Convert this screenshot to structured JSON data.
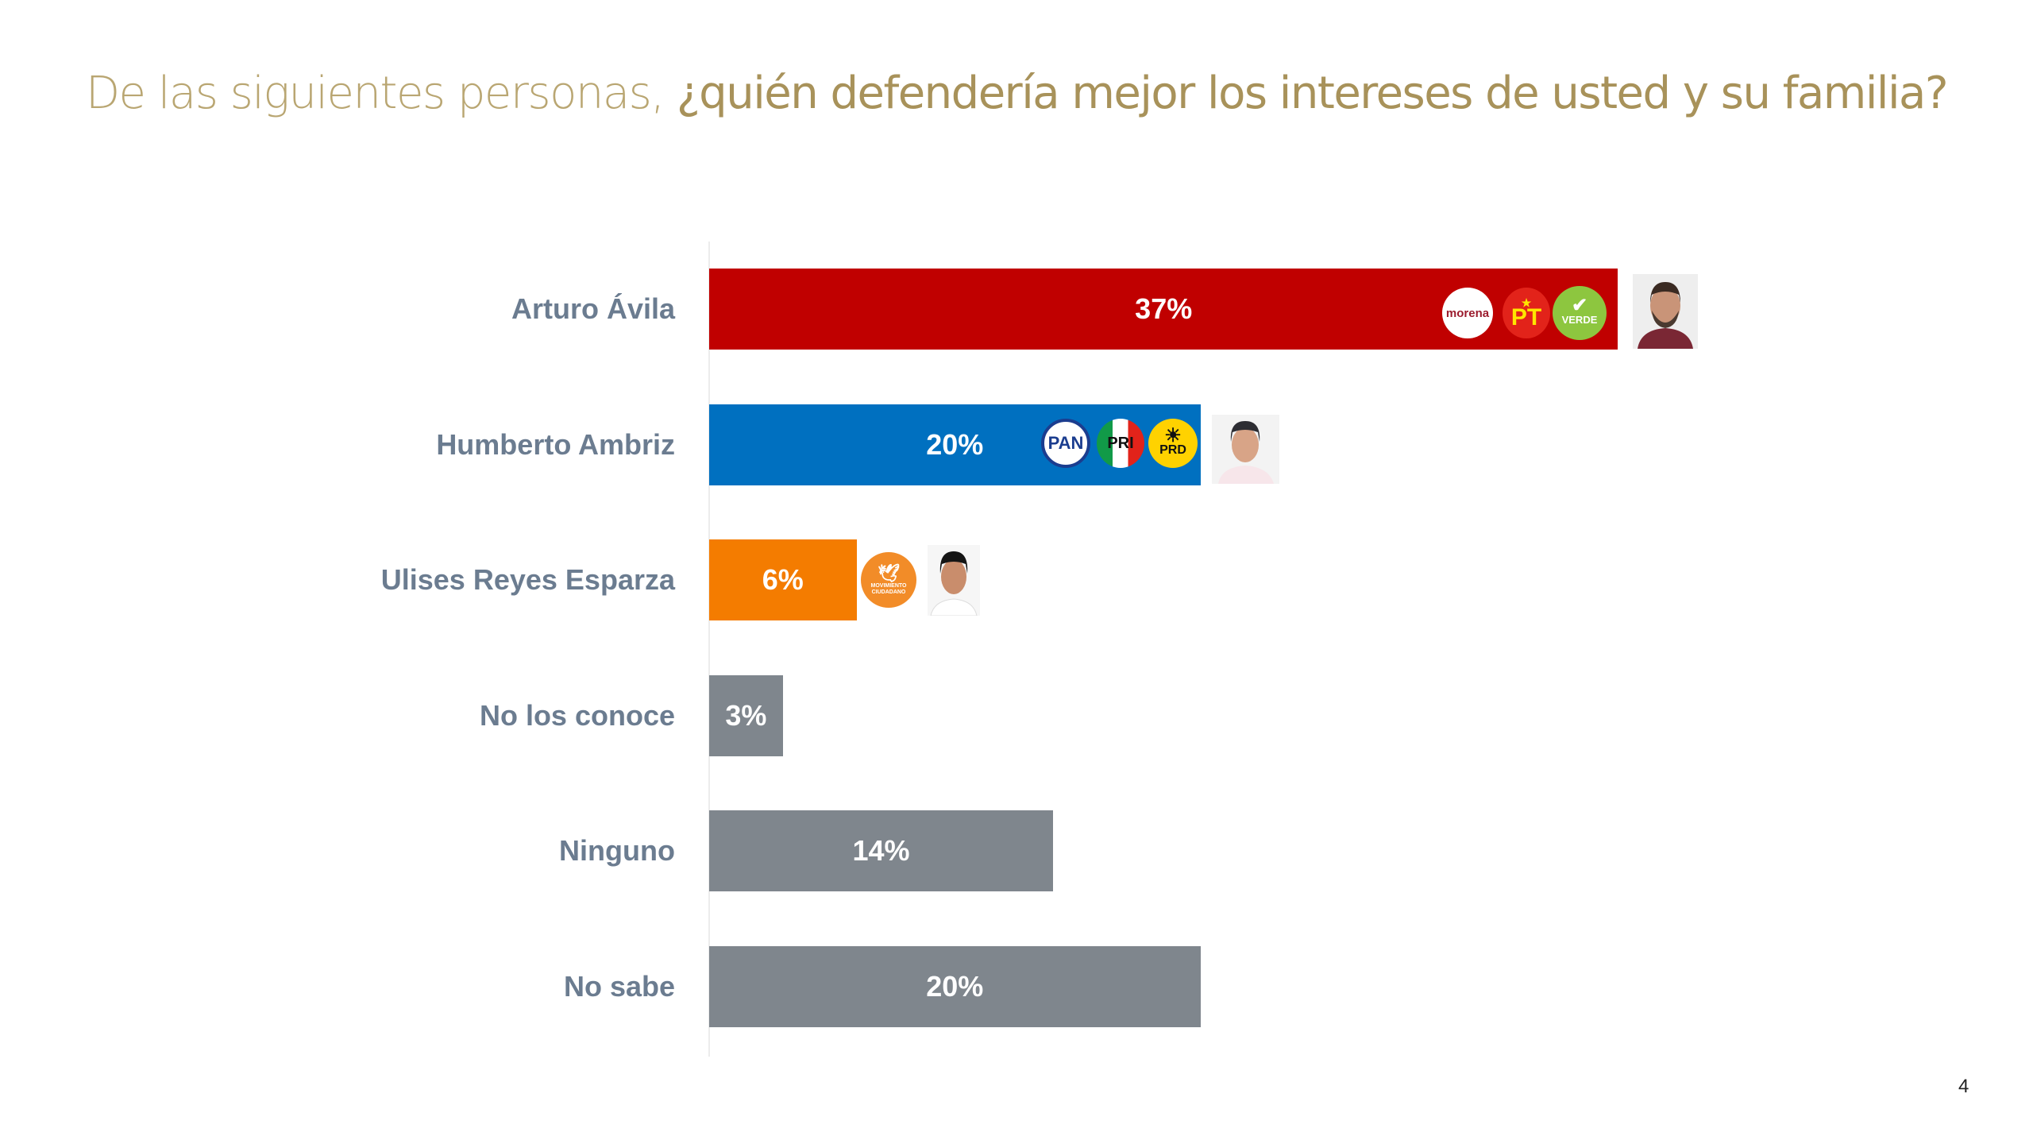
{
  "title": {
    "light": "De las siguientes personas, ",
    "bold": "¿quién defendería mejor los intereses de usted y su familia?"
  },
  "page_number": "4",
  "chart_data": {
    "type": "bar",
    "orientation": "horizontal",
    "title": "De las siguientes personas, ¿quién defendería mejor los intereses de usted y su familia?",
    "categories": [
      "Arturo Ávila",
      "Humberto Ambriz",
      "Ulises Reyes Esparza",
      "No los conoce",
      "Ninguno",
      "No sabe"
    ],
    "values": [
      37,
      20,
      6,
      3,
      14,
      20
    ],
    "labels": [
      "37%",
      "20%",
      "6%",
      "3%",
      "14%",
      "20%"
    ],
    "unit": "%",
    "colors": [
      "#c00000",
      "#0070c0",
      "#f47c00",
      "#7f868d",
      "#7f868d",
      "#7f868d"
    ],
    "xlim": [
      0,
      40
    ],
    "grid": false,
    "legend": "none"
  },
  "logos": {
    "morena": "morena",
    "pt": "PT",
    "verde": "VERDE",
    "pan": "PAN",
    "pri": "PRI",
    "prd": "PRD",
    "mc": "MOVIMIENTO CIUDADANO"
  },
  "icons": {
    "candidate_photos": [
      "person-photo",
      "person-photo",
      "person-photo"
    ]
  }
}
